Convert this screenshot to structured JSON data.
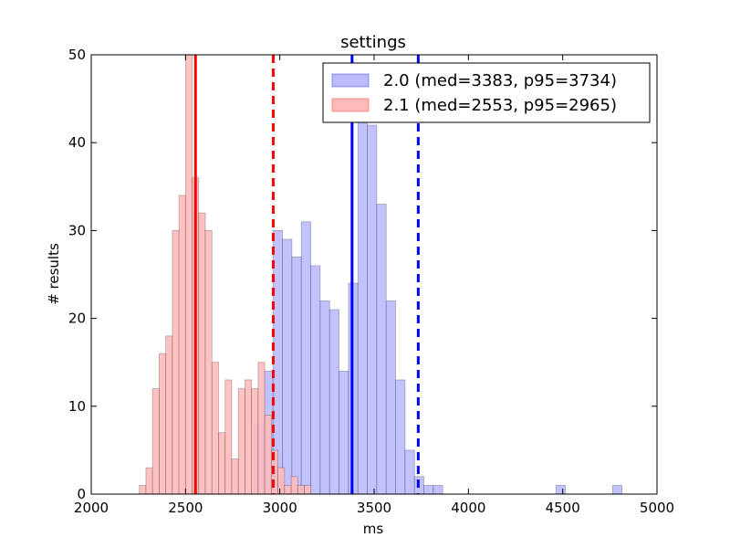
{
  "chart_data": {
    "type": "bar",
    "subtype": "histogram",
    "title": "settings",
    "xlabel": "ms",
    "ylabel": "# results",
    "xlim": [
      2000,
      5000
    ],
    "ylim": [
      0,
      50
    ],
    "xticks": [
      2000,
      2500,
      3000,
      3500,
      4000,
      4500,
      5000
    ],
    "yticks": [
      0,
      10,
      20,
      30,
      40,
      50
    ],
    "grid": false,
    "legend_position": "top-right",
    "series": [
      {
        "name": "2.0 (med=3383, p95=3734)",
        "color": "#0000ff",
        "fill": "#bbbbff",
        "median": 3383,
        "p95": 3734,
        "bins": [
          [
            2864,
            2914,
            8
          ],
          [
            2914,
            2964,
            14
          ],
          [
            2964,
            3014,
            30
          ],
          [
            3014,
            3064,
            29
          ],
          [
            3064,
            3114,
            27
          ],
          [
            3114,
            3164,
            31
          ],
          [
            3164,
            3214,
            26
          ],
          [
            3214,
            3264,
            22
          ],
          [
            3264,
            3314,
            21
          ],
          [
            3314,
            3364,
            14
          ],
          [
            3364,
            3414,
            24
          ],
          [
            3414,
            3464,
            46
          ],
          [
            3464,
            3514,
            42
          ],
          [
            3514,
            3564,
            33
          ],
          [
            3564,
            3614,
            22
          ],
          [
            3614,
            3664,
            13
          ],
          [
            3664,
            3714,
            5
          ],
          [
            3714,
            3764,
            2
          ],
          [
            3764,
            3814,
            1
          ],
          [
            3814,
            3864,
            1
          ],
          [
            4464,
            4514,
            1
          ],
          [
            4764,
            4814,
            1
          ]
        ]
      },
      {
        "name": "2.1 (med=2553, p95=2965)",
        "color": "#ff0000",
        "fill": "#ffbbbb",
        "median": 2553,
        "p95": 2965,
        "bins": [
          [
            2255,
            2290,
            1
          ],
          [
            2290,
            2325,
            3
          ],
          [
            2325,
            2360,
            12
          ],
          [
            2360,
            2395,
            16
          ],
          [
            2395,
            2430,
            18
          ],
          [
            2430,
            2465,
            30
          ],
          [
            2465,
            2500,
            34
          ],
          [
            2500,
            2535,
            50
          ],
          [
            2535,
            2570,
            36
          ],
          [
            2570,
            2605,
            32
          ],
          [
            2605,
            2640,
            30
          ],
          [
            2640,
            2675,
            15
          ],
          [
            2675,
            2710,
            7
          ],
          [
            2710,
            2745,
            13
          ],
          [
            2745,
            2780,
            4
          ],
          [
            2780,
            2815,
            12
          ],
          [
            2815,
            2850,
            13
          ],
          [
            2850,
            2885,
            12
          ],
          [
            2885,
            2920,
            15
          ],
          [
            2920,
            2955,
            9
          ],
          [
            2955,
            2990,
            5
          ],
          [
            2990,
            3025,
            3
          ],
          [
            3025,
            3060,
            1
          ],
          [
            3060,
            3095,
            2
          ],
          [
            3095,
            3130,
            1
          ],
          [
            3130,
            3165,
            1
          ]
        ]
      }
    ]
  }
}
